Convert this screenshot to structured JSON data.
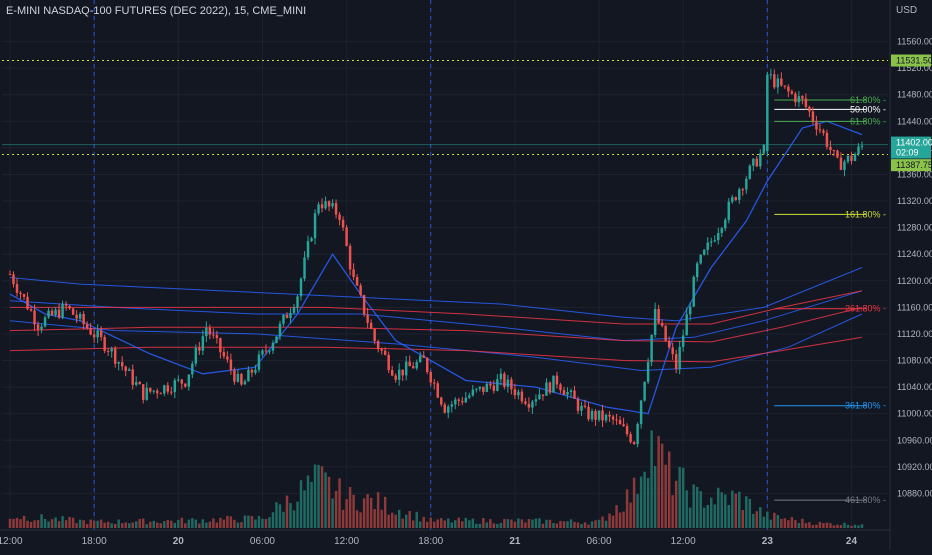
{
  "header": {
    "symbol_title": "E-MINI NASDAQ-100 FUTURES (DEC 2022), 15, CME_MINI"
  },
  "chart_data": {
    "type": "candlestick",
    "currency": "USD",
    "ylim": [
      10840,
      11600
    ],
    "y_ticks": [
      11560,
      11520,
      11480,
      11440,
      11400,
      11360,
      11320,
      11280,
      11240,
      11200,
      11160,
      11120,
      11080,
      11040,
      11000,
      10960,
      10920,
      10880
    ],
    "x_ticks": [
      {
        "label": "12:00",
        "bar": 0
      },
      {
        "label": "18:00",
        "bar": 24
      },
      {
        "label": "20",
        "bar": 48
      },
      {
        "label": "06:00",
        "bar": 72
      },
      {
        "label": "12:00",
        "bar": 96
      },
      {
        "label": "18:00",
        "bar": 120
      },
      {
        "label": "21",
        "bar": 144
      },
      {
        "label": "06:00",
        "bar": 168
      },
      {
        "label": "12:00",
        "bar": 192
      },
      {
        "label": "23",
        "bar": 216
      },
      {
        "label": "24",
        "bar": 240
      }
    ],
    "session_breaks_bar": [
      24,
      120,
      216
    ],
    "key_price_points": [
      {
        "bar": 0,
        "close": 11210
      },
      {
        "bar": 8,
        "close": 11135
      },
      {
        "bar": 16,
        "close": 11160
      },
      {
        "bar": 28,
        "close": 11100
      },
      {
        "bar": 38,
        "close": 11030
      },
      {
        "bar": 50,
        "close": 11050
      },
      {
        "bar": 56,
        "close": 11130
      },
      {
        "bar": 66,
        "close": 11040
      },
      {
        "bar": 76,
        "close": 11120
      },
      {
        "bar": 82,
        "close": 11180
      },
      {
        "bar": 88,
        "close": 11320
      },
      {
        "bar": 94,
        "close": 11300
      },
      {
        "bar": 98,
        "close": 11200
      },
      {
        "bar": 104,
        "close": 11110
      },
      {
        "bar": 110,
        "close": 11060
      },
      {
        "bar": 118,
        "close": 11080
      },
      {
        "bar": 124,
        "close": 11010
      },
      {
        "bar": 132,
        "close": 11030
      },
      {
        "bar": 140,
        "close": 11050
      },
      {
        "bar": 148,
        "close": 11020
      },
      {
        "bar": 156,
        "close": 11050
      },
      {
        "bar": 164,
        "close": 11000
      },
      {
        "bar": 172,
        "close": 10990
      },
      {
        "bar": 178,
        "close": 10960
      },
      {
        "bar": 184,
        "close": 11150
      },
      {
        "bar": 190,
        "close": 11070
      },
      {
        "bar": 196,
        "close": 11220
      },
      {
        "bar": 202,
        "close": 11280
      },
      {
        "bar": 208,
        "close": 11340
      },
      {
        "bar": 214,
        "close": 11390
      },
      {
        "bar": 215,
        "close": 11395
      },
      {
        "bar": 216,
        "close": 11510
      },
      {
        "bar": 220,
        "close": 11490
      },
      {
        "bar": 226,
        "close": 11470
      },
      {
        "bar": 232,
        "close": 11420
      },
      {
        "bar": 236,
        "close": 11375
      },
      {
        "bar": 240,
        "close": 11385
      },
      {
        "bar": 243,
        "close": 11402
      }
    ],
    "volume_peaks": [
      {
        "bar": 0,
        "height": 0.1
      },
      {
        "bar": 24,
        "height": 0.05
      },
      {
        "bar": 48,
        "height": 0.06
      },
      {
        "bar": 72,
        "height": 0.08
      },
      {
        "bar": 88,
        "height": 0.4
      },
      {
        "bar": 96,
        "height": 0.25
      },
      {
        "bar": 104,
        "height": 0.22
      },
      {
        "bar": 120,
        "height": 0.06
      },
      {
        "bar": 144,
        "height": 0.06
      },
      {
        "bar": 168,
        "height": 0.05
      },
      {
        "bar": 178,
        "height": 0.3
      },
      {
        "bar": 182,
        "height": 0.75
      },
      {
        "bar": 188,
        "height": 0.45
      },
      {
        "bar": 196,
        "height": 0.25
      },
      {
        "bar": 208,
        "height": 0.25
      },
      {
        "bar": 216,
        "height": 0.1
      },
      {
        "bar": 230,
        "height": 0.04
      },
      {
        "bar": 243,
        "height": 0.03
      }
    ],
    "moving_averages": [
      {
        "color": "#2962ff",
        "points": [
          [
            0,
            11205
          ],
          [
            20,
            11195
          ],
          [
            60,
            11185
          ],
          [
            100,
            11175
          ],
          [
            140,
            11165
          ],
          [
            175,
            11145
          ],
          [
            190,
            11140
          ],
          [
            215,
            11160
          ],
          [
            243,
            11220
          ]
        ]
      },
      {
        "color": "#2962ff",
        "points": [
          [
            0,
            11170
          ],
          [
            30,
            11160
          ],
          [
            70,
            11150
          ],
          [
            100,
            11150
          ],
          [
            140,
            11130
          ],
          [
            175,
            11110
          ],
          [
            195,
            11115
          ],
          [
            215,
            11140
          ],
          [
            243,
            11185
          ]
        ]
      },
      {
        "color": "#2962ff",
        "points": [
          [
            0,
            11140
          ],
          [
            30,
            11125
          ],
          [
            70,
            11120
          ],
          [
            110,
            11105
          ],
          [
            150,
            11085
          ],
          [
            180,
            11065
          ],
          [
            200,
            11070
          ],
          [
            222,
            11100
          ],
          [
            243,
            11150
          ]
        ]
      },
      {
        "color": "#f23645",
        "points": [
          [
            0,
            11160
          ],
          [
            40,
            11160
          ],
          [
            90,
            11160
          ],
          [
            130,
            11150
          ],
          [
            175,
            11135
          ],
          [
            200,
            11135
          ],
          [
            220,
            11160
          ],
          [
            243,
            11185
          ]
        ]
      },
      {
        "color": "#f23645",
        "points": [
          [
            0,
            11125
          ],
          [
            40,
            11130
          ],
          [
            90,
            11130
          ],
          [
            130,
            11125
          ],
          [
            175,
            11110
          ],
          [
            200,
            11108
          ],
          [
            220,
            11130
          ],
          [
            243,
            11160
          ]
        ]
      },
      {
        "color": "#f23645",
        "points": [
          [
            0,
            11095
          ],
          [
            40,
            11100
          ],
          [
            90,
            11100
          ],
          [
            130,
            11095
          ],
          [
            175,
            11080
          ],
          [
            200,
            11078
          ],
          [
            220,
            11095
          ],
          [
            243,
            11115
          ]
        ]
      },
      {
        "color": "#2962ff",
        "width": 1.3,
        "points": [
          [
            0,
            11180
          ],
          [
            10,
            11150
          ],
          [
            20,
            11140
          ],
          [
            40,
            11090
          ],
          [
            55,
            11060
          ],
          [
            70,
            11070
          ],
          [
            82,
            11150
          ],
          [
            92,
            11240
          ],
          [
            100,
            11180
          ],
          [
            110,
            11110
          ],
          [
            130,
            11050
          ],
          [
            150,
            11040
          ],
          [
            170,
            11010
          ],
          [
            182,
            11000
          ],
          [
            190,
            11130
          ],
          [
            200,
            11220
          ],
          [
            210,
            11290
          ],
          [
            216,
            11350
          ],
          [
            226,
            11430
          ],
          [
            233,
            11440
          ],
          [
            243,
            11420
          ]
        ]
      }
    ],
    "fib_levels": [
      {
        "label": "61.80%",
        "price": 11472,
        "color": "#4caf50",
        "from_bar": 218,
        "to_bar": 243
      },
      {
        "label": "50.00%",
        "price": 11458,
        "color": "#ffffff",
        "from_bar": 218,
        "to_bar": 243
      },
      {
        "label": "61.80%",
        "price": 11440,
        "color": "#4caf50",
        "from_bar": 218,
        "to_bar": 243
      },
      {
        "label": "161.80%",
        "price": 11300,
        "color": "#cddc39",
        "from_bar": 218,
        "to_bar": 243
      },
      {
        "label": "261.80%",
        "price": 11158,
        "color": "#f23645",
        "from_bar": 218,
        "to_bar": 243
      },
      {
        "label": "361.80%",
        "price": 11012,
        "color": "#2196f3",
        "from_bar": 218,
        "to_bar": 243
      },
      {
        "label": "461.80%",
        "price": 10870,
        "color": "#787b86",
        "from_bar": 218,
        "to_bar": 243
      }
    ],
    "horizontal_lines": [
      {
        "price": 11531.5,
        "color": "#cddc39",
        "style": "dotted"
      },
      {
        "price": 11390,
        "color": "#cddc39",
        "style": "dotted"
      },
      {
        "price": 11405,
        "color": "#26a69a",
        "style": "solid-thin"
      }
    ],
    "price_labels": [
      {
        "text": "11531.50",
        "price": 11531.5,
        "bg": "#8bc34a",
        "fg": "#131722"
      },
      {
        "text": "11402.00",
        "price": 11408,
        "bg": "#26a69a",
        "fg": "#ffffff"
      },
      {
        "text": "02:09",
        "price": 11393,
        "bg": "#26a69a",
        "fg": "#ffffff"
      },
      {
        "text": "11387.75",
        "price": 11374,
        "bg": "#8bc34a",
        "fg": "#131722"
      }
    ],
    "colors": {
      "up": "#26a69a",
      "down": "#ef5350",
      "volume_up": "#1f6b63",
      "volume_down": "#8e3a3a",
      "grid": "#1e222d",
      "background": "#131722",
      "session_break": "#2962ff"
    }
  }
}
